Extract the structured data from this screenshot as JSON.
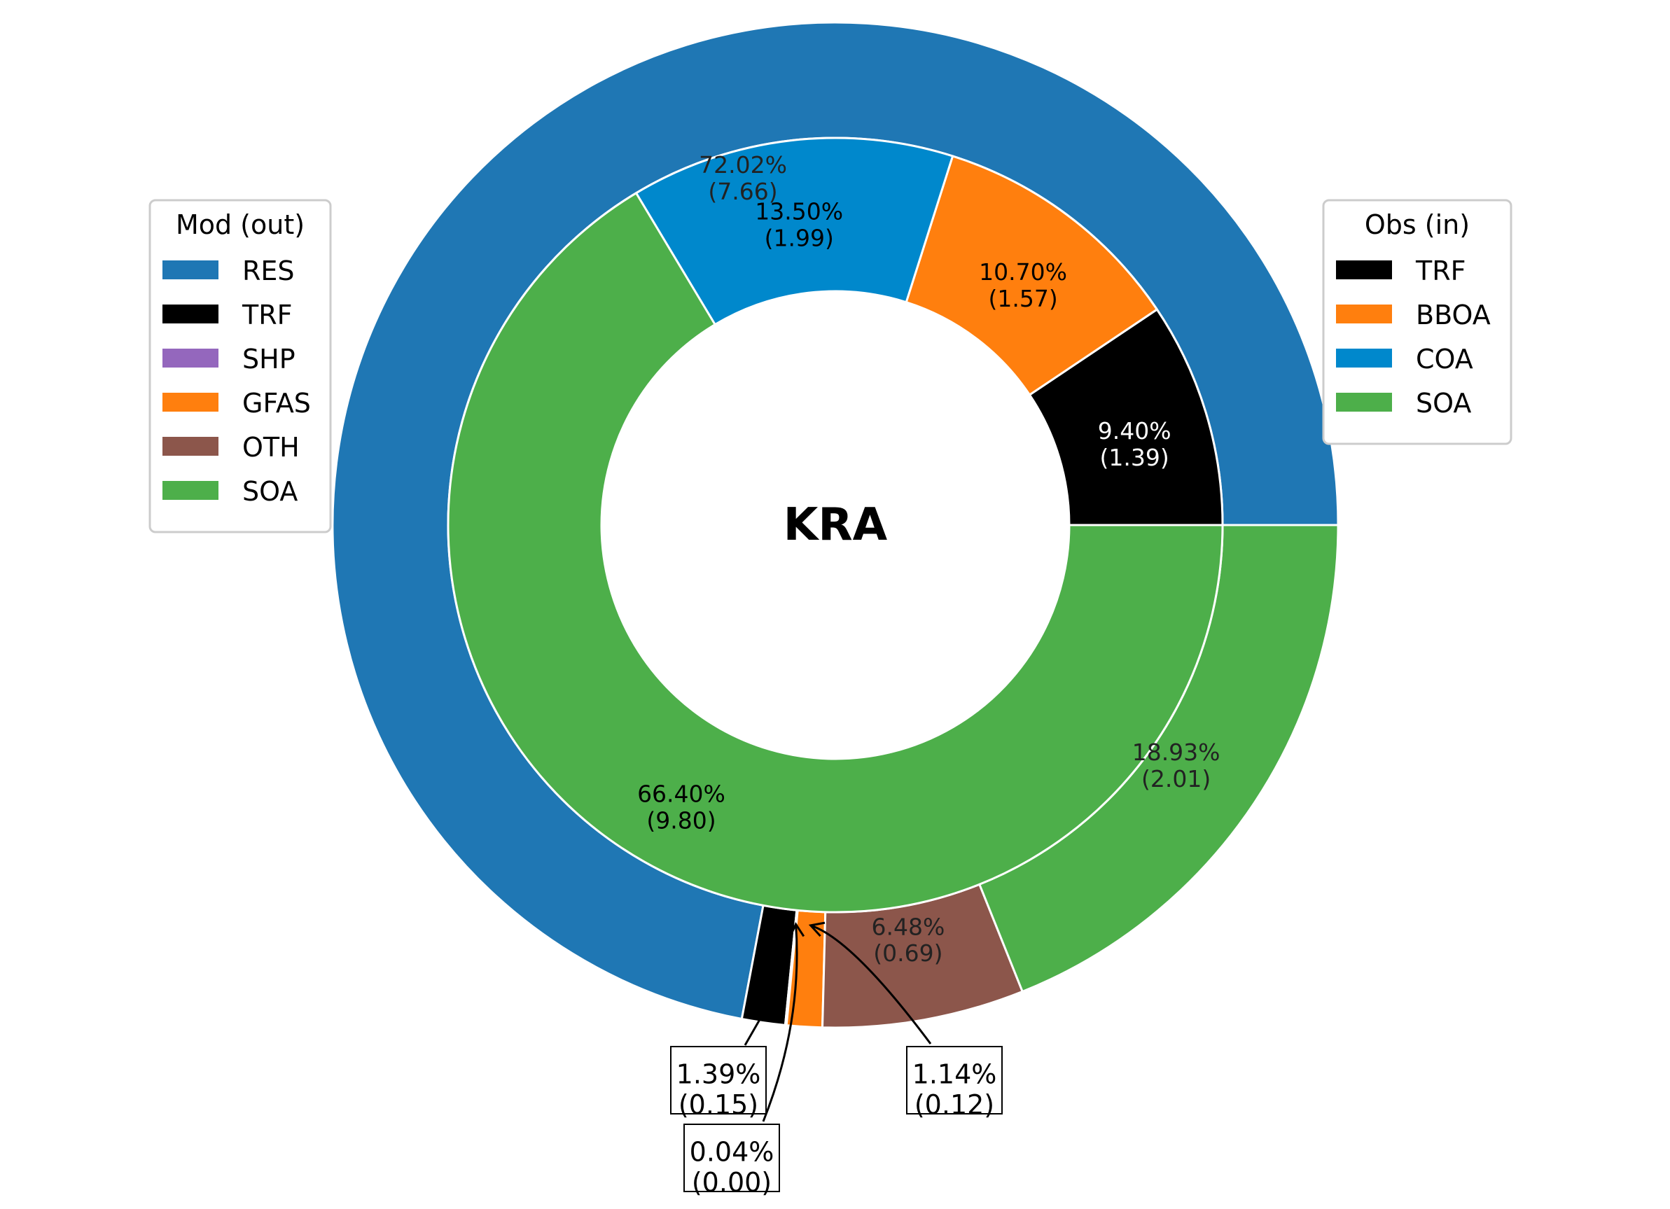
{
  "chart_data": {
    "type": "pie",
    "title": "KRA",
    "outer_ring": {
      "legend_title": "Mod (out)",
      "legend_position": "left",
      "slices": [
        {
          "label": "RES",
          "percent": 72.02,
          "value": 7.66,
          "color": "#1f77b4",
          "text": [
            "72.02%",
            "(7.66)"
          ]
        },
        {
          "label": "TRF",
          "percent": 1.39,
          "value": 0.15,
          "color": "#000000",
          "text": [
            "1.39%",
            "(0.15)"
          ]
        },
        {
          "label": "SHP",
          "percent": 0.04,
          "value": 0.0,
          "color": "#9467bd",
          "text": [
            "0.04%",
            "(0.00)"
          ]
        },
        {
          "label": "GFAS",
          "percent": 1.14,
          "value": 0.12,
          "color": "#ff7f0e",
          "text": [
            "1.14%",
            "(0.12)"
          ]
        },
        {
          "label": "OTH",
          "percent": 6.48,
          "value": 0.69,
          "color": "#8c564b",
          "text": [
            "6.48%",
            "(0.69)"
          ]
        },
        {
          "label": "SOA",
          "percent": 18.93,
          "value": 2.01,
          "color": "#4daf4a",
          "text": [
            "18.93%",
            "(2.01)"
          ]
        }
      ]
    },
    "inner_ring": {
      "legend_title": "Obs (in)",
      "legend_position": "right",
      "slices": [
        {
          "label": "TRF",
          "percent": 9.4,
          "value": 1.39,
          "color": "#000000",
          "text": [
            "9.40%",
            "(1.39)"
          ]
        },
        {
          "label": "BBOA",
          "percent": 10.7,
          "value": 1.57,
          "color": "#ff7f0e",
          "text": [
            "10.70%",
            "(1.57)"
          ]
        },
        {
          "label": "COA",
          "percent": 13.5,
          "value": 1.99,
          "color": "#0088cc",
          "text": [
            "13.50%",
            "(1.99)"
          ]
        },
        {
          "label": "SOA",
          "percent": 66.4,
          "value": 9.8,
          "color": "#4daf4a",
          "text": [
            "66.40%",
            "(9.80)"
          ]
        }
      ]
    }
  }
}
